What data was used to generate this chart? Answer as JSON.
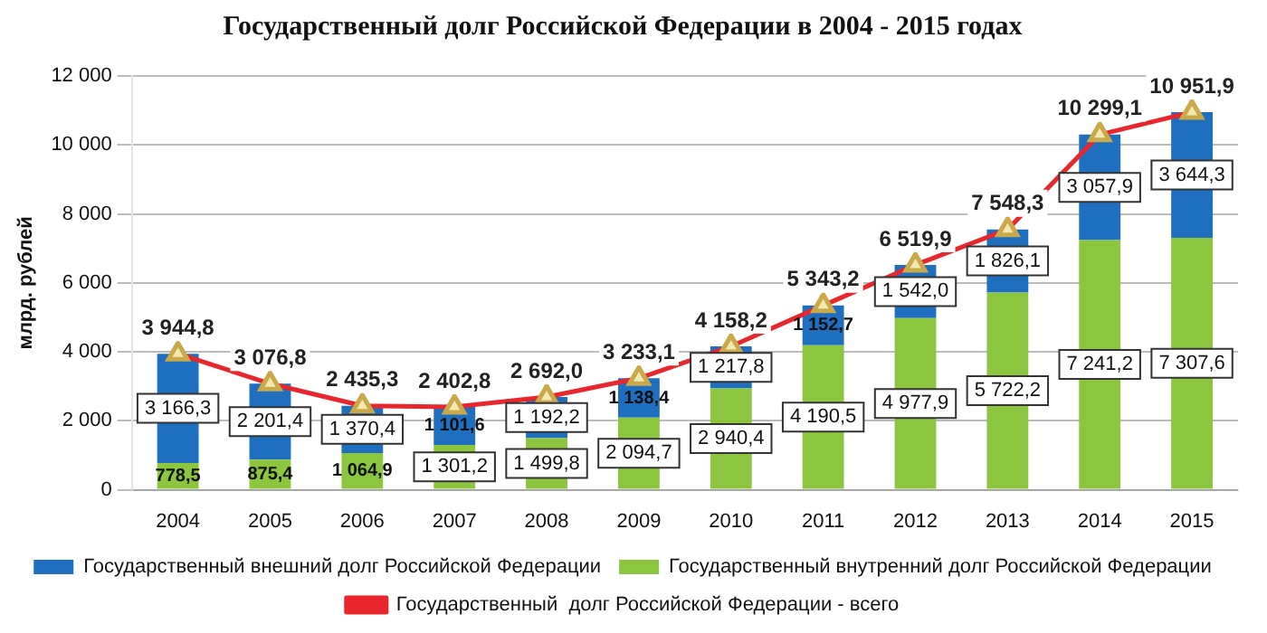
{
  "chart_data": {
    "type": "bar",
    "title": "Государственный долг Российской Федерации в 2004 - 2015 годах",
    "ylabel": "млрд. рублей",
    "categories": [
      "2004",
      "2005",
      "2006",
      "2007",
      "2008",
      "2009",
      "2010",
      "2011",
      "2012",
      "2013",
      "2014",
      "2015"
    ],
    "stacked": true,
    "ylim": [
      0,
      12000
    ],
    "yticks": [
      0,
      {
        "value": 2000,
        "label": "2 000"
      },
      {
        "value": 4000,
        "label": "4 000"
      },
      {
        "value": 6000,
        "label": "6 000"
      },
      {
        "value": 8000,
        "label": "8 000"
      },
      {
        "value": 10000,
        "label": "10 000"
      },
      {
        "value": 12000,
        "label": "12 000"
      }
    ],
    "grid": "y",
    "legend": "bottom",
    "series": [
      {
        "name": "Государственный внутренний долг Российской Федерации",
        "color": "#8cc63f",
        "values": [
          778.5,
          875.4,
          1064.9,
          1301.2,
          1499.8,
          2094.7,
          2940.4,
          4190.5,
          4977.9,
          5722.2,
          7241.2,
          7307.6
        ],
        "value_labels": [
          "778,5",
          "875,4",
          "1 064,9",
          "1 301,2",
          "1 499,8",
          "2 094,7",
          "2 940,4",
          "4 190,5",
          "4 977,9",
          "5 722,2",
          "7 241,2",
          "7 307,6"
        ]
      },
      {
        "name": "Государственный внешний долг Российской Федерации",
        "color": "#1f6fc1",
        "values": [
          3166.3,
          2201.4,
          1370.4,
          1101.6,
          1192.2,
          1138.4,
          1217.8,
          1152.7,
          1542.0,
          1826.1,
          3057.9,
          3644.3
        ],
        "value_labels": [
          "3 166,3",
          "2 201,4",
          "1 370,4",
          "1 101,6",
          "1 192,2",
          "1 138,4",
          "1 217,8",
          "1 152,7",
          "1 542,0",
          "1 826,1",
          "3 057,9",
          "3 644,3"
        ]
      },
      {
        "name": "Государственный  долг Российской Федерации - всего",
        "type": "line",
        "color": "#e8262b",
        "marker": "triangle",
        "values": [
          3944.8,
          3076.8,
          2435.3,
          2402.8,
          2692.0,
          3233.1,
          4158.2,
          5343.2,
          6519.9,
          7548.3,
          10299.1,
          10951.9
        ],
        "value_labels": [
          "3 944,8",
          "3 076,8",
          "2 435,3",
          "2 402,8",
          "2 692,0",
          "3 233,1",
          "4 158,2",
          "5 343,2",
          "6 519,9",
          "7 548,3",
          "10 299,1",
          "10 951,9"
        ]
      }
    ]
  }
}
